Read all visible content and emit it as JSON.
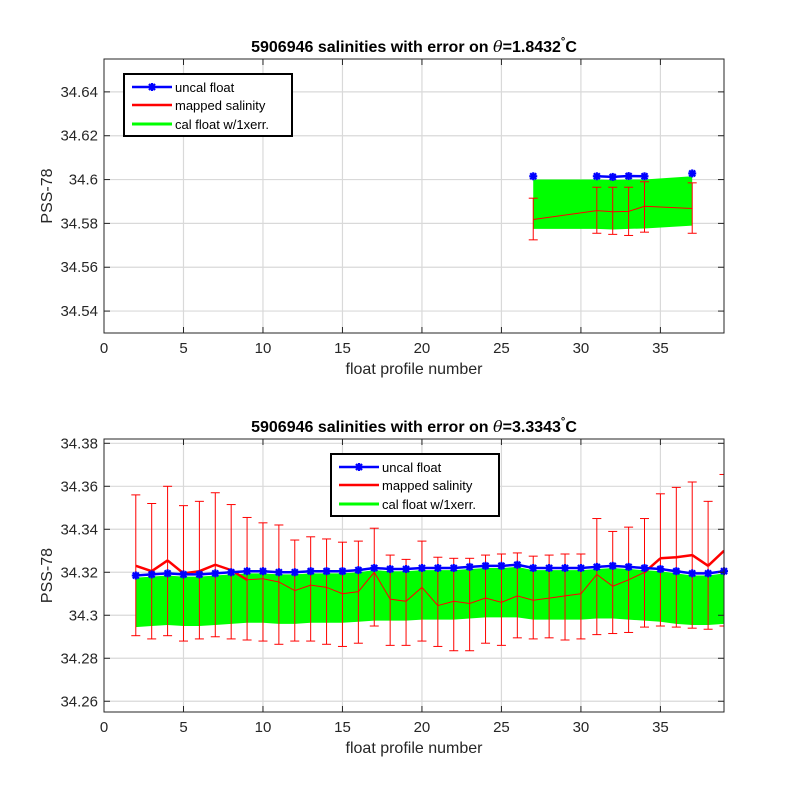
{
  "chart_data": [
    {
      "type": "line",
      "title_prefix": "5906946 salinities with error on ",
      "title_theta": "θ",
      "title_value": "=1.8432",
      "title_degree": "°",
      "title_unit": "C",
      "xlabel": "float profile number",
      "ylabel": "PSS-78",
      "xlim": [
        0,
        39
      ],
      "ylim": [
        34.53,
        34.655
      ],
      "xticks": [
        0,
        5,
        10,
        15,
        20,
        25,
        30,
        35
      ],
      "xtick_labels": [
        "0",
        "5",
        "10",
        "15",
        "20",
        "25",
        "30",
        "35"
      ],
      "yticks": [
        34.54,
        34.56,
        34.58,
        34.6,
        34.62,
        34.64
      ],
      "ytick_labels": [
        "34.54",
        "34.56",
        "34.58",
        "34.6",
        "34.62",
        "34.64"
      ],
      "grid": true,
      "legend_position": "top-left",
      "legend": [
        "uncal float",
        "mapped salinity",
        "cal float w/1xerr."
      ],
      "colors": {
        "uncal": "#0000ff",
        "mapped": "#ff0000",
        "cal": "#00ff00"
      },
      "profiles": [
        27,
        31,
        32,
        33,
        34,
        37
      ],
      "uncal": [
        34.6015,
        34.6015,
        34.6012,
        34.6016,
        34.6015,
        34.6028
      ],
      "mapped": [
        34.5818,
        34.5858,
        34.5853,
        34.5855,
        34.5878,
        34.5868
      ],
      "mapped_err_lo": [
        34.5725,
        34.5755,
        34.575,
        34.5745,
        34.576,
        34.5755
      ],
      "mapped_err_hi": [
        34.5915,
        34.5965,
        34.5965,
        34.5965,
        34.599,
        34.5985
      ],
      "cal_lo": [
        34.5775,
        34.5775,
        34.5772,
        34.5775,
        34.5777,
        34.579
      ],
      "cal_hi": [
        34.6,
        34.6,
        34.5998,
        34.6,
        34.6,
        34.6015
      ]
    },
    {
      "type": "line",
      "title_prefix": "5906946 salinities with error on ",
      "title_theta": "θ",
      "title_value": "=3.3343",
      "title_degree": "°",
      "title_unit": "C",
      "xlabel": "float profile number",
      "ylabel": "PSS-78",
      "xlim": [
        0,
        39
      ],
      "ylim": [
        34.255,
        34.382
      ],
      "xticks": [
        0,
        5,
        10,
        15,
        20,
        25,
        30,
        35
      ],
      "xtick_labels": [
        "0",
        "5",
        "10",
        "15",
        "20",
        "25",
        "30",
        "35"
      ],
      "yticks": [
        34.26,
        34.28,
        34.3,
        34.32,
        34.34,
        34.36,
        34.38
      ],
      "ytick_labels": [
        "34.26",
        "34.28",
        "34.3",
        "34.32",
        "34.34",
        "34.36",
        "34.38"
      ],
      "grid": true,
      "legend_position": "top-center",
      "legend": [
        "uncal float",
        "mapped salinity",
        "cal float w/1xerr."
      ],
      "colors": {
        "uncal": "#0000ff",
        "mapped": "#ff0000",
        "cal": "#00ff00"
      },
      "profiles": [
        2,
        3,
        4,
        5,
        6,
        7,
        8,
        9,
        10,
        11,
        12,
        13,
        14,
        15,
        16,
        17,
        18,
        19,
        20,
        21,
        22,
        23,
        24,
        25,
        26,
        27,
        28,
        29,
        30,
        31,
        32,
        33,
        34,
        35,
        36,
        37,
        38,
        39
      ],
      "uncal": [
        34.3185,
        34.319,
        34.3195,
        34.319,
        34.319,
        34.3195,
        34.32,
        34.3205,
        34.3205,
        34.32,
        34.32,
        34.3205,
        34.3205,
        34.3205,
        34.321,
        34.322,
        34.3215,
        34.3215,
        34.322,
        34.322,
        34.322,
        34.3225,
        34.323,
        34.323,
        34.3235,
        34.322,
        34.322,
        34.322,
        34.322,
        34.3225,
        34.323,
        34.3225,
        34.322,
        34.3215,
        34.3205,
        34.3195,
        34.3195,
        34.3205
      ],
      "mapped": [
        34.323,
        34.3205,
        34.3255,
        34.3195,
        34.3205,
        34.3235,
        34.321,
        34.3165,
        34.317,
        34.3155,
        34.3115,
        34.314,
        34.313,
        34.31,
        34.311,
        34.32,
        34.3075,
        34.3065,
        34.313,
        34.3045,
        34.3065,
        34.3055,
        34.308,
        34.306,
        34.309,
        34.307,
        34.308,
        34.309,
        34.31,
        34.319,
        34.3135,
        34.3165,
        34.32,
        34.3265,
        34.327,
        34.328,
        34.323,
        34.33
      ],
      "mapped_err_lo": [
        34.2905,
        34.289,
        34.2905,
        34.288,
        34.289,
        34.29,
        34.289,
        34.2885,
        34.288,
        34.2865,
        34.288,
        34.288,
        34.2865,
        34.2855,
        34.287,
        34.295,
        34.286,
        34.286,
        34.288,
        34.2855,
        34.2835,
        34.2835,
        34.287,
        34.286,
        34.2895,
        34.289,
        34.2895,
        34.2885,
        34.289,
        34.291,
        34.2915,
        34.292,
        34.2945,
        34.295,
        34.2945,
        34.294,
        34.2935,
        34.295
      ],
      "mapped_err_hi": [
        34.356,
        34.352,
        34.36,
        34.351,
        34.353,
        34.357,
        34.3515,
        34.3455,
        34.343,
        34.342,
        34.335,
        34.3365,
        34.3355,
        34.334,
        34.3345,
        34.3405,
        34.328,
        34.326,
        34.3345,
        34.327,
        34.3265,
        34.3265,
        34.328,
        34.3285,
        34.329,
        34.3275,
        34.328,
        34.3285,
        34.3285,
        34.345,
        34.339,
        34.341,
        34.345,
        34.3565,
        34.3595,
        34.362,
        34.353,
        34.3655
      ],
      "cal_lo": [
        34.2945,
        34.295,
        34.2955,
        34.295,
        34.295,
        34.2955,
        34.296,
        34.2965,
        34.2965,
        34.296,
        34.296,
        34.2965,
        34.2965,
        34.2965,
        34.297,
        34.2975,
        34.2975,
        34.2975,
        34.298,
        34.298,
        34.298,
        34.2985,
        34.299,
        34.299,
        34.299,
        34.298,
        34.298,
        34.298,
        34.298,
        34.2985,
        34.2985,
        34.298,
        34.2975,
        34.297,
        34.296,
        34.2955,
        34.2955,
        34.296
      ],
      "cal_hi": [
        34.3175,
        34.318,
        34.3185,
        34.318,
        34.318,
        34.3185,
        34.319,
        34.3195,
        34.3195,
        34.319,
        34.319,
        34.3195,
        34.3195,
        34.3195,
        34.32,
        34.321,
        34.3205,
        34.3205,
        34.321,
        34.321,
        34.321,
        34.3215,
        34.322,
        34.322,
        34.3225,
        34.321,
        34.321,
        34.321,
        34.321,
        34.3215,
        34.322,
        34.3215,
        34.321,
        34.3205,
        34.3195,
        34.3185,
        34.3185,
        34.3195
      ]
    }
  ]
}
